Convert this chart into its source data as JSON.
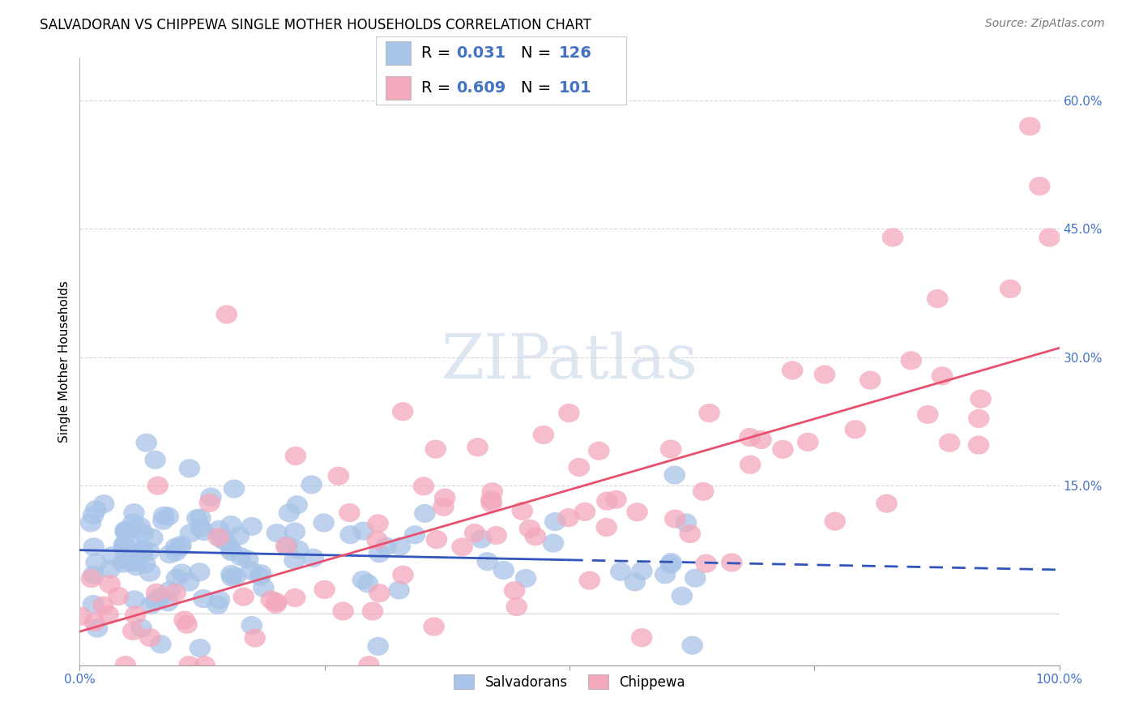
{
  "title": "SALVADORAN VS CHIPPEWA SINGLE MOTHER HOUSEHOLDS CORRELATION CHART",
  "source": "Source: ZipAtlas.com",
  "ylabel": "Single Mother Households",
  "ytick_vals": [
    0.0,
    0.15,
    0.3,
    0.45,
    0.6
  ],
  "ytick_labels": [
    "",
    "15.0%",
    "30.0%",
    "45.0%",
    "60.0%"
  ],
  "xlim": [
    0.0,
    1.0
  ],
  "ylim": [
    -0.06,
    0.65
  ],
  "legend_R1": "0.031",
  "legend_N1": "126",
  "legend_R2": "0.609",
  "legend_N2": "101",
  "salvadoran_color": "#a8c4e8",
  "chippewa_color": "#f4a8bc",
  "salvadoran_line_color": "#3355bb",
  "chippewa_line_color": "#e85070",
  "background_color": "#ffffff",
  "grid_color": "#cccccc",
  "watermark_ZI": "ZI",
  "watermark_P": "P",
  "watermark_atlas": "atlas",
  "watermark_color": "#c8d8e8",
  "legend_text_color": "#4472c4",
  "axis_text_color": "#4472c4",
  "title_fontsize": 12,
  "source_fontsize": 10,
  "tick_fontsize": 11,
  "legend_fontsize": 14
}
